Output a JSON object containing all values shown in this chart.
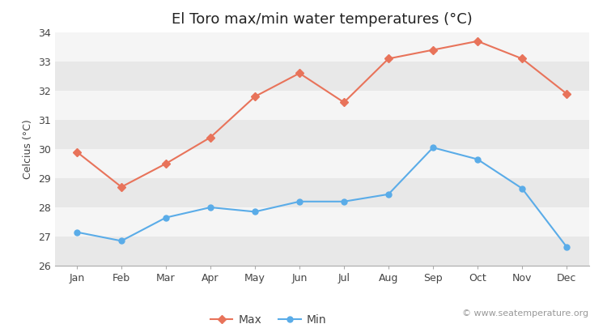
{
  "title": "El Toro max/min water temperatures (°C)",
  "ylabel": "Celcius (°C)",
  "months": [
    "Jan",
    "Feb",
    "Mar",
    "Apr",
    "May",
    "Jun",
    "Jul",
    "Aug",
    "Sep",
    "Oct",
    "Nov",
    "Dec"
  ],
  "max_temps": [
    29.9,
    28.7,
    29.5,
    30.4,
    31.8,
    32.6,
    31.6,
    33.1,
    33.4,
    33.7,
    33.1,
    31.9
  ],
  "min_temps": [
    27.15,
    26.85,
    27.65,
    28.0,
    27.85,
    28.2,
    28.2,
    28.45,
    30.05,
    29.65,
    28.65,
    26.65
  ],
  "max_color": "#e8735a",
  "min_color": "#5aace8",
  "background_color": "#ffffff",
  "plot_bg_color": "#f0f0f0",
  "band_colors": [
    "#e8e8e8",
    "#f5f5f5"
  ],
  "ylim": [
    26,
    34
  ],
  "yticks": [
    26,
    27,
    28,
    29,
    30,
    31,
    32,
    33,
    34
  ],
  "legend_labels": [
    "Max",
    "Min"
  ],
  "watermark": "© www.seatemperature.org",
  "title_fontsize": 13,
  "label_fontsize": 9,
  "tick_fontsize": 9,
  "legend_fontsize": 10,
  "watermark_fontsize": 8,
  "max_marker": "D",
  "min_marker": "o",
  "marker_size": 5,
  "line_width": 1.5
}
